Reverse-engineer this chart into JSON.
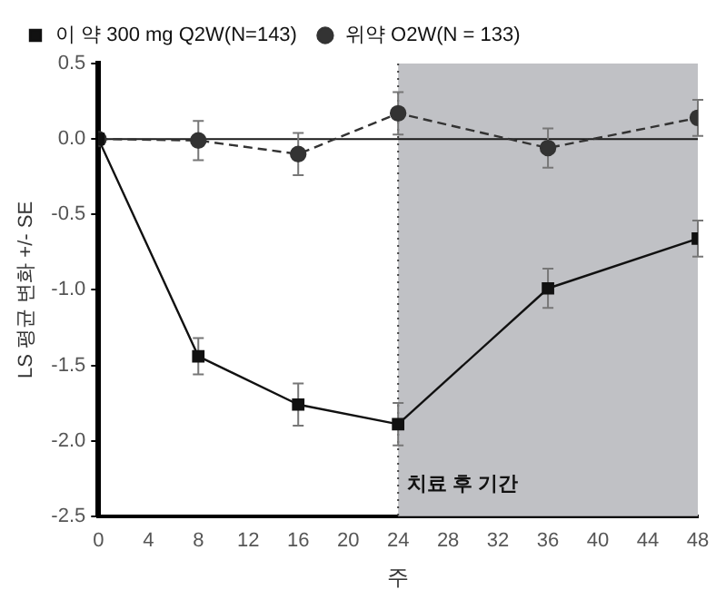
{
  "chart_data": {
    "type": "line",
    "xlabel": "주",
    "ylabel": "LS 평균 변화 +/- SE",
    "x": [
      0,
      8,
      16,
      24,
      36,
      48
    ],
    "series": [
      {
        "name": "이 약 300 mg Q2W(N=143)",
        "color": "#111111",
        "values": [
          0,
          -1.44,
          -1.76,
          -1.89,
          -0.99,
          -0.66
        ],
        "errors": [
          null,
          0.12,
          0.14,
          0.14,
          0.13,
          0.12
        ],
        "marker": "square",
        "line_style": "solid"
      },
      {
        "name": "위약 O2W(N = 133)",
        "color": "#333333",
        "values": [
          0,
          -0.01,
          -0.1,
          0.17,
          -0.06,
          0.14
        ],
        "errors": [
          null,
          0.13,
          0.14,
          0.14,
          0.13,
          0.12
        ],
        "marker": "circle",
        "line_style": "dashed"
      }
    ],
    "xlim": [
      0,
      48
    ],
    "xticks": [
      0,
      4,
      8,
      12,
      16,
      20,
      24,
      28,
      32,
      36,
      40,
      44,
      48
    ],
    "ylim": [
      -2.5,
      0.5
    ],
    "yticks": [
      {
        "value": -2.5,
        "label": "-2.5"
      },
      {
        "value": -2,
        "label": "-2.0"
      },
      {
        "value": -1.5,
        "label": "-1.5"
      },
      {
        "value": -1,
        "label": "-1.0"
      },
      {
        "value": -0.5,
        "label": "-0.5"
      },
      {
        "value": 0,
        "label": "0.0"
      },
      {
        "value": 0.5,
        "label": "0.5"
      }
    ],
    "ref_lines": [
      {
        "axis": "y",
        "value": 0,
        "color": "#1a1a1a",
        "line_style": "solid"
      },
      {
        "axis": "x",
        "value": 24,
        "color": "#444444",
        "line_style": "dotted"
      }
    ],
    "bands": [
      {
        "axis": "x",
        "from": 24,
        "to": 48,
        "label": "치료 후 기간",
        "color": "#c0c1c5"
      }
    ],
    "grid": false,
    "legend": "top left"
  }
}
